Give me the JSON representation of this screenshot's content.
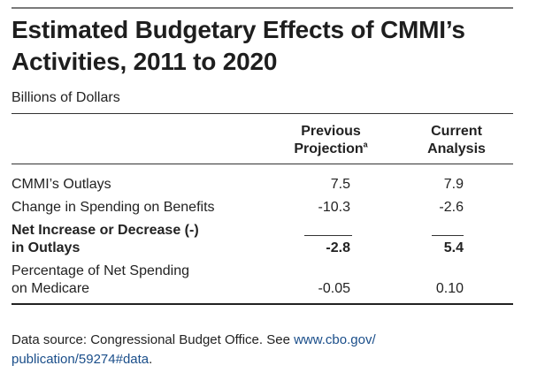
{
  "title": {
    "line1": "Estimated Budgetary Effects of CMMI’s",
    "line2": "Activities, 2011 to 2020"
  },
  "units": "Billions of Dollars",
  "columns": {
    "previous": {
      "line1": "Previous",
      "line2": "Projection",
      "footnote": "a"
    },
    "current": {
      "line1": "Current",
      "line2": "Analysis"
    }
  },
  "rows": [
    {
      "label": "CMMI’s Outlays",
      "previous": "7.5",
      "current": "7.9"
    },
    {
      "label": "Change in Spending on Benefits",
      "previous": "-10.3",
      "current": "-2.6"
    },
    {
      "label_line1": "Net Increase or Decrease (-)",
      "label_line2": "in Outlays",
      "previous": "-2.8",
      "current": "5.4"
    },
    {
      "label_line1": "Percentage of Net Spending",
      "label_line2": "on Medicare",
      "previous": "-0.05",
      "current": "0.10"
    }
  ],
  "source": {
    "text": "Data source: Congressional Budget Office. See ",
    "link_line1": "www.cbo.gov/",
    "link_line2": "publication/59274#data",
    "end": "."
  }
}
